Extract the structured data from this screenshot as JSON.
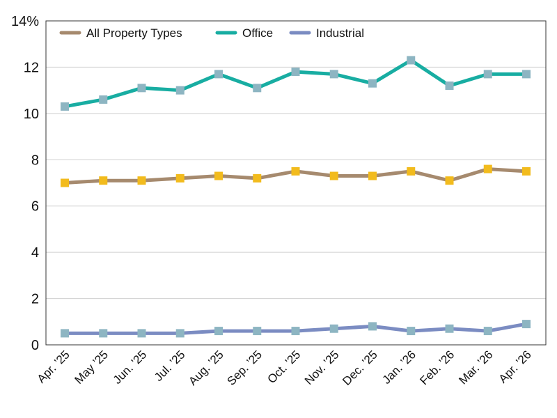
{
  "chart_data": {
    "type": "line",
    "categories": [
      "Apr. ’25",
      "May ’25",
      "Jun. ’25",
      "Jul. ’25",
      "Aug. ’25",
      "Sep. ’25",
      "Oct. ’25",
      "Nov. ’25",
      "Dec. ’25",
      "Jan. ’26",
      "Feb. ’26",
      "Mar. ’26",
      "Apr. ’26"
    ],
    "y_tick_labels": [
      "0",
      "2",
      "4",
      "6",
      "8",
      "10",
      "12",
      "14%"
    ],
    "ylim": [
      0,
      14
    ],
    "grid": "horizontal",
    "legend_position": "top-left",
    "series": [
      {
        "name": "All Property Types",
        "color": "#a68a6e",
        "marker_color": "#f2bb1d",
        "values": [
          7.0,
          7.1,
          7.1,
          7.2,
          7.3,
          7.2,
          7.5,
          7.3,
          7.3,
          7.5,
          7.1,
          7.6,
          7.5
        ]
      },
      {
        "name": "Office",
        "color": "#18ada2",
        "marker_color": "#8db5c2",
        "values": [
          10.3,
          10.6,
          11.1,
          11.0,
          11.7,
          11.1,
          11.8,
          11.7,
          11.3,
          12.3,
          11.2,
          11.7,
          11.7
        ]
      },
      {
        "name": "Industrial",
        "color": "#7b8cc2",
        "marker_color": "#8db5c2",
        "values": [
          0.5,
          0.5,
          0.5,
          0.5,
          0.6,
          0.6,
          0.6,
          0.7,
          0.8,
          0.6,
          0.7,
          0.6,
          0.9
        ]
      }
    ]
  }
}
